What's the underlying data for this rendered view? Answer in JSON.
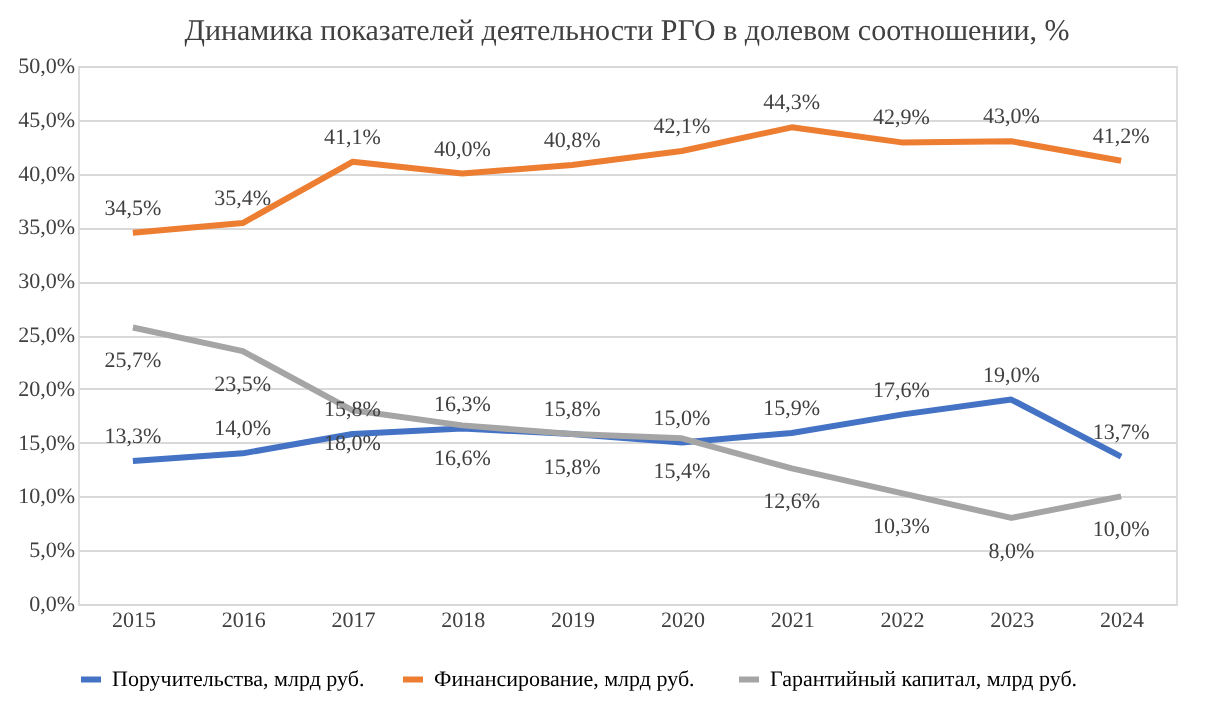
{
  "chart_data": {
    "type": "line",
    "title": "Динамика показателей деятельности РГО в долевом соотношении, %",
    "categories": [
      "2015",
      "2016",
      "2017",
      "2018",
      "2019",
      "2020",
      "2021",
      "2022",
      "2023",
      "2024"
    ],
    "series": [
      {
        "name": "Поручительства, млрд руб.",
        "color": "#4472c4",
        "values": [
          13.3,
          14.0,
          15.8,
          16.3,
          15.8,
          15.0,
          15.9,
          17.6,
          19.0,
          13.7
        ],
        "value_labels": [
          "13,3%",
          "14,0%",
          "15,8%",
          "16,3%",
          "15,8%",
          "15,0%",
          "15,9%",
          "17,6%",
          "19,0%",
          "13,7%"
        ]
      },
      {
        "name": "Финансирование,  млрд руб.",
        "color": "#ed7d31",
        "values": [
          34.5,
          35.4,
          41.1,
          40.0,
          40.8,
          42.1,
          44.3,
          42.9,
          43.0,
          41.2
        ],
        "value_labels": [
          "34,5%",
          "35,4%",
          "41,1%",
          "40,0%",
          "40,8%",
          "42,1%",
          "44,3%",
          "42,9%",
          "43,0%",
          "41,2%"
        ]
      },
      {
        "name": "Гарантийный  капитал,  млрд руб.",
        "color": "#a5a5a5",
        "values": [
          25.7,
          23.5,
          18.0,
          16.6,
          15.8,
          15.4,
          12.6,
          10.3,
          8.0,
          10.0
        ],
        "value_labels": [
          "25,7%",
          "23,5%",
          "18,0%",
          "16,6%",
          "15,8%",
          "15,4%",
          "12,6%",
          "10,3%",
          "8,0%",
          "10,0%"
        ]
      }
    ],
    "ylim": [
      0,
      50
    ],
    "yticks": [
      {
        "value": 0,
        "label": "0,0%"
      },
      {
        "value": 5,
        "label": "5,0%"
      },
      {
        "value": 10,
        "label": "10,0%"
      },
      {
        "value": 15,
        "label": "15,0%"
      },
      {
        "value": 20,
        "label": "20,0%"
      },
      {
        "value": 25,
        "label": "25,0%"
      },
      {
        "value": 30,
        "label": "30,0%"
      },
      {
        "value": 35,
        "label": "35,0%"
      },
      {
        "value": 40,
        "label": "40,0%"
      },
      {
        "value": 45,
        "label": "45,0%"
      },
      {
        "value": 50,
        "label": "50,0%"
      }
    ],
    "grid": "y",
    "legend": "bottom",
    "marker": "none",
    "line_style": "solid"
  }
}
